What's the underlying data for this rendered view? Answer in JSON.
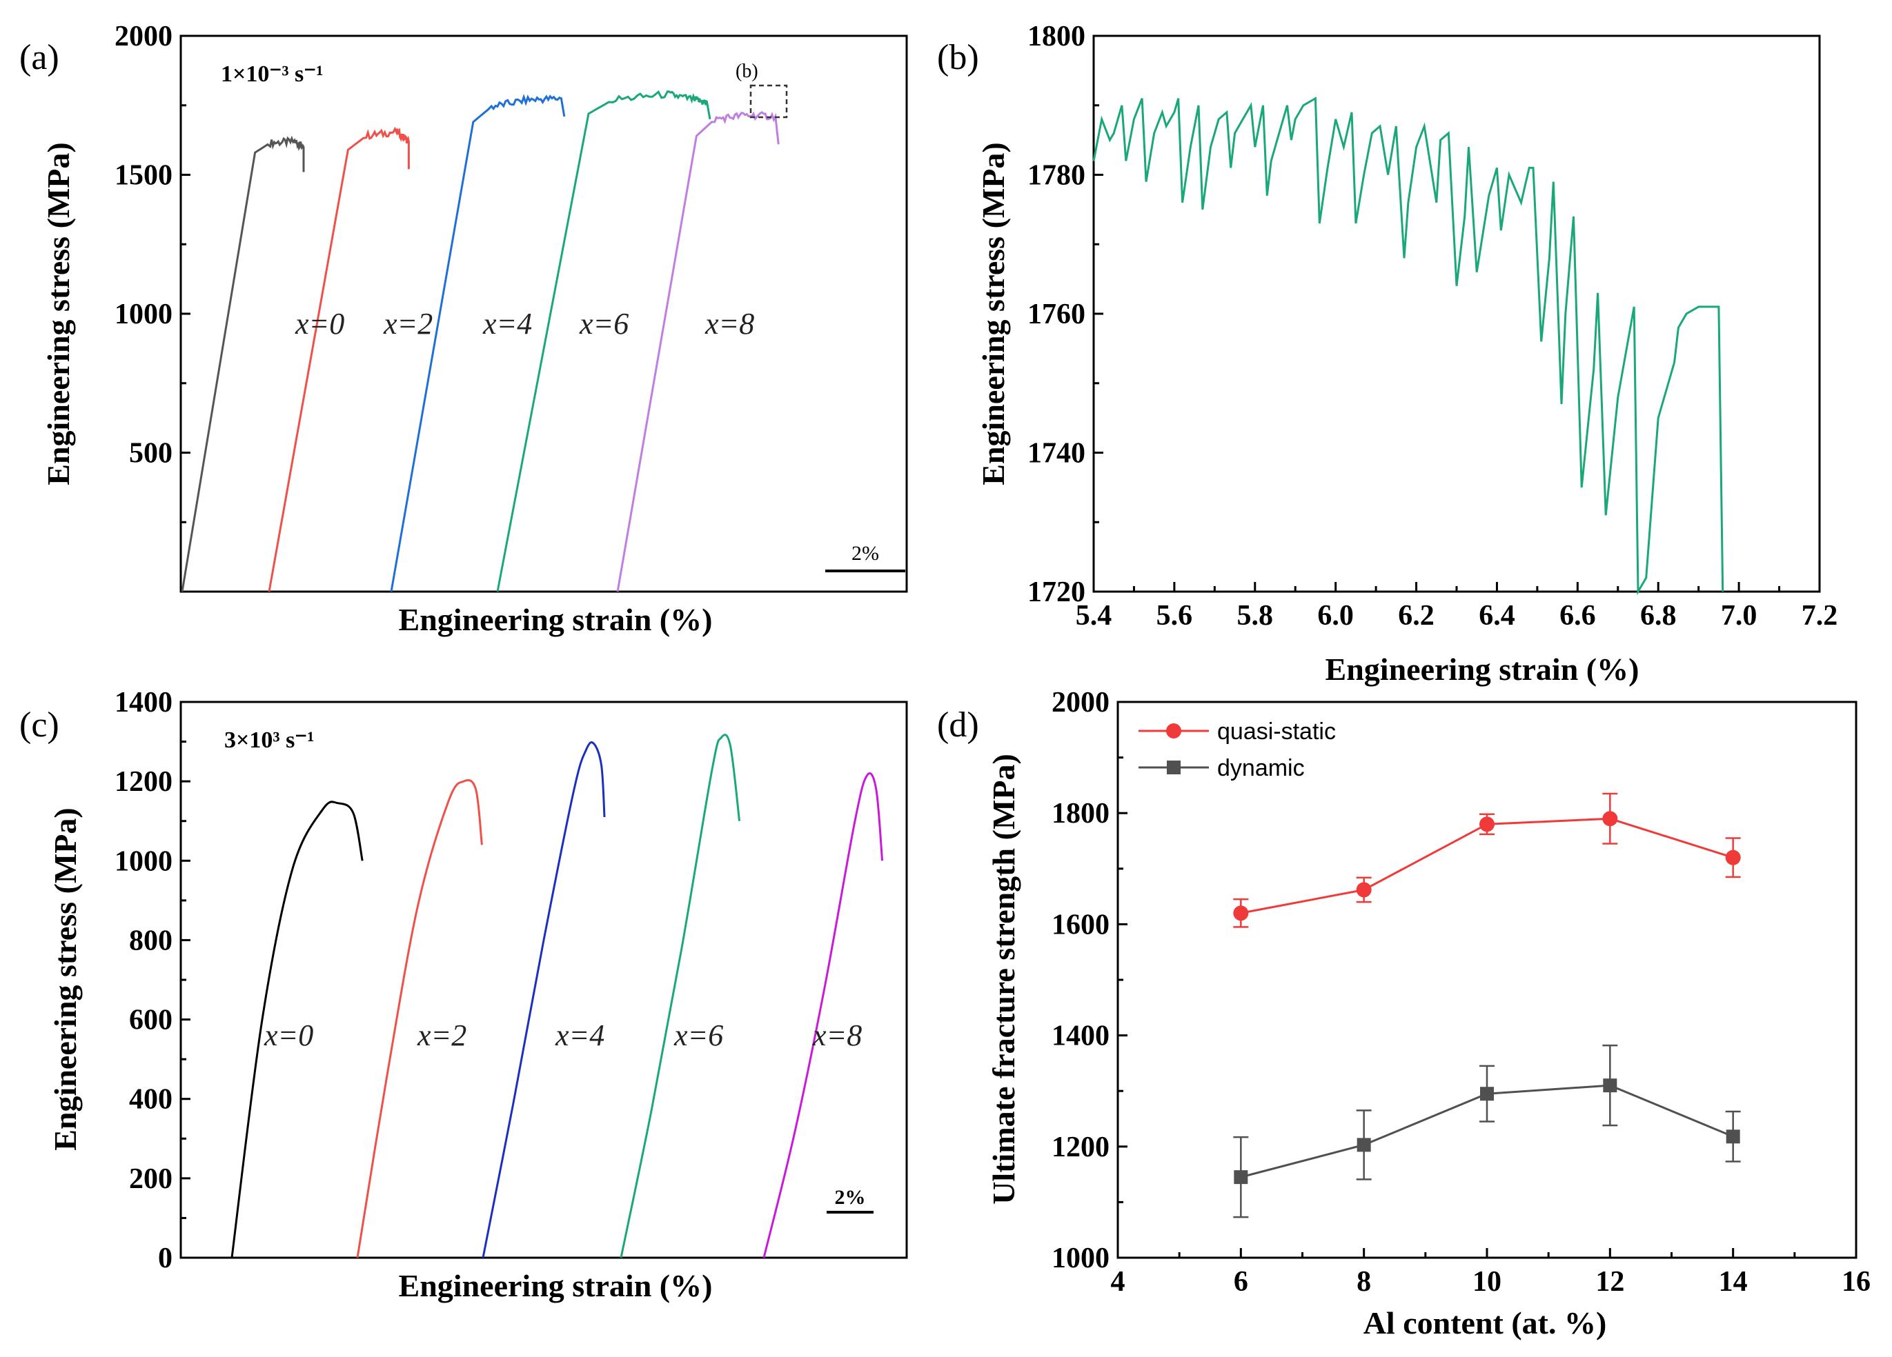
{
  "figure": {
    "panels": {
      "a": {
        "label": "(a)",
        "rate": "1×10⁻³ s⁻¹",
        "xlabel": "Engineering strain (%)",
        "ylabel": "Engineering stress (MPa)",
        "yticks": [
          "2000",
          "1500",
          "1000",
          "500"
        ],
        "scale_bar": "2%",
        "inset_marker": "(b)"
      },
      "b": {
        "label": "(b)",
        "xlabel": "Engineering strain (%)",
        "ylabel": "Engineering stress (MPa)",
        "xticks": [
          "5.4",
          "5.6",
          "5.8",
          "6.0",
          "6.2",
          "6.4",
          "6.6",
          "6.8",
          "7.0",
          "7.2"
        ],
        "yticks": [
          "1800",
          "1780",
          "1760",
          "1740",
          "1720"
        ]
      },
      "c": {
        "label": "(c)",
        "rate": "3×10³ s⁻¹",
        "xlabel": "Engineering strain (%)",
        "ylabel": "Engineering stress (MPa)",
        "yticks": [
          "1400",
          "1200",
          "1000",
          "800",
          "600",
          "400",
          "200",
          "0"
        ],
        "scale_bar": "2%"
      },
      "d": {
        "label": "(d)",
        "xlabel": "Al content (at. %)",
        "ylabel": "Ultimate fracture strength (MPa)",
        "xticks": [
          "4",
          "6",
          "8",
          "10",
          "12",
          "14",
          "16"
        ],
        "yticks": [
          "2000",
          "1800",
          "1600",
          "1400",
          "1200",
          "1000"
        ]
      }
    }
  },
  "chart_data": [
    {
      "panel": "a",
      "type": "line",
      "title": "1×10⁻³ s⁻¹",
      "xlabel": "Engineering strain (%)",
      "ylabel": "Engineering stress (MPa)",
      "ylim": [
        0,
        2000
      ],
      "series": [
        {
          "name": "x=0",
          "label": "x=0",
          "color": "#555555",
          "curve": [
            [
              0,
              0
            ],
            [
              2.4,
              1580
            ],
            [
              2.9,
              1615
            ],
            [
              3.7,
              1620
            ],
            [
              4.0,
              1600
            ],
            [
              4.0,
              1510
            ]
          ]
        },
        {
          "name": "x=2",
          "label": "x=2",
          "color": "#f0504a",
          "curve": [
            [
              0,
              0
            ],
            [
              2.6,
              1590
            ],
            [
              3.2,
              1640
            ],
            [
              4.2,
              1655
            ],
            [
              4.6,
              1620
            ],
            [
              4.6,
              1520
            ]
          ]
        },
        {
          "name": "x=4",
          "label": "x=4",
          "color": "#1f6fd8",
          "curve": [
            [
              0,
              0
            ],
            [
              2.7,
              1690
            ],
            [
              3.3,
              1745
            ],
            [
              4.5,
              1770
            ],
            [
              5.6,
              1775
            ],
            [
              5.7,
              1710
            ]
          ]
        },
        {
          "name": "x=6",
          "label": "x=6",
          "color": "#1aa878",
          "curve": [
            [
              0,
              0
            ],
            [
              3.0,
              1720
            ],
            [
              3.8,
              1770
            ],
            [
              5.6,
              1790
            ],
            [
              6.5,
              1770
            ],
            [
              6.9,
              1760
            ],
            [
              7.0,
              1700
            ]
          ]
        },
        {
          "name": "x=8",
          "label": "x=8",
          "color": "#c07ee0",
          "curve": [
            [
              0,
              0
            ],
            [
              2.6,
              1640
            ],
            [
              3.2,
              1700
            ],
            [
              4.2,
              1715
            ],
            [
              5.2,
              1710
            ],
            [
              5.3,
              1610
            ]
          ]
        }
      ],
      "scale_bar": "2%"
    },
    {
      "panel": "b",
      "type": "line",
      "xlabel": "Engineering strain (%)",
      "ylabel": "Engineering stress (MPa)",
      "xlim": [
        5.4,
        7.2
      ],
      "ylim": [
        1720,
        1800
      ],
      "series": [
        {
          "name": "x=6",
          "color": "#1aa878",
          "x": [
            5.4,
            5.42,
            5.44,
            5.45,
            5.47,
            5.48,
            5.5,
            5.52,
            5.53,
            5.55,
            5.57,
            5.58,
            5.6,
            5.61,
            5.62,
            5.64,
            5.66,
            5.67,
            5.69,
            5.71,
            5.73,
            5.74,
            5.75,
            5.77,
            5.79,
            5.8,
            5.82,
            5.83,
            5.84,
            5.86,
            5.88,
            5.89,
            5.9,
            5.92,
            5.95,
            5.96,
            5.98,
            6.0,
            6.02,
            6.04,
            6.05,
            6.07,
            6.09,
            6.11,
            6.13,
            6.15,
            6.17,
            6.18,
            6.2,
            6.22,
            6.25,
            6.26,
            6.28,
            6.3,
            6.32,
            6.33,
            6.35,
            6.38,
            6.4,
            6.41,
            6.43,
            6.46,
            6.48,
            6.49,
            6.51,
            6.53,
            6.54,
            6.56,
            6.57,
            6.59,
            6.61,
            6.64,
            6.65,
            6.67,
            6.7,
            6.74,
            6.75,
            6.77,
            6.8,
            6.84,
            6.85,
            6.87,
            6.9,
            6.95,
            6.96,
            6.96
          ],
          "y": [
            1782,
            1788,
            1785,
            1786,
            1790,
            1782,
            1788,
            1791,
            1779,
            1786,
            1789,
            1787,
            1789,
            1791,
            1776,
            1784,
            1790,
            1775,
            1784,
            1788,
            1789,
            1781,
            1786,
            1788,
            1790,
            1784,
            1790,
            1777,
            1782,
            1786,
            1790,
            1785,
            1788,
            1790,
            1791,
            1773,
            1781,
            1788,
            1784,
            1789,
            1773,
            1780,
            1786,
            1787,
            1780,
            1787,
            1768,
            1776,
            1784,
            1787,
            1776,
            1785,
            1786,
            1764,
            1774,
            1784,
            1766,
            1777,
            1781,
            1772,
            1780,
            1776,
            1781,
            1781,
            1756,
            1768,
            1779,
            1747,
            1760,
            1774,
            1735,
            1752,
            1763,
            1731,
            1748,
            1761,
            1720,
            1722,
            1745,
            1753,
            1758,
            1760,
            1761,
            1761,
            1720,
            1720
          ]
        }
      ]
    },
    {
      "panel": "c",
      "type": "line",
      "title": "3×10³ s⁻¹",
      "xlabel": "Engineering strain (%)",
      "ylabel": "Engineering stress (MPa)",
      "ylim": [
        0,
        1400
      ],
      "series": [
        {
          "name": "x=0",
          "label": "x=0",
          "color": "#000000",
          "curve": [
            [
              0,
              0
            ],
            [
              1.0,
              600
            ],
            [
              2.0,
              980
            ],
            [
              3.0,
              1130
            ],
            [
              3.5,
              1145
            ],
            [
              4.0,
              1120
            ],
            [
              4.3,
              1000
            ]
          ]
        },
        {
          "name": "x=2",
          "label": "x=2",
          "color": "#f0504a",
          "curve": [
            [
              0,
              0
            ],
            [
              1.0,
              470
            ],
            [
              2.0,
              890
            ],
            [
              3.0,
              1150
            ],
            [
              3.5,
              1200
            ],
            [
              3.9,
              1180
            ],
            [
              4.1,
              1040
            ]
          ]
        },
        {
          "name": "x=4",
          "label": "x=4",
          "color": "#1b2fc0",
          "curve": [
            [
              0,
              0
            ],
            [
              1.0,
              390
            ],
            [
              2.0,
              800
            ],
            [
              3.0,
              1180
            ],
            [
              3.4,
              1280
            ],
            [
              3.65,
              1295
            ],
            [
              3.9,
              1240
            ],
            [
              4.0,
              1110
            ]
          ]
        },
        {
          "name": "x=6",
          "label": "x=6",
          "color": "#1aa878",
          "curve": [
            [
              0,
              0
            ],
            [
              1.0,
              370
            ],
            [
              2.0,
              780
            ],
            [
              3.0,
              1230
            ],
            [
              3.3,
              1310
            ],
            [
              3.6,
              1290
            ],
            [
              3.9,
              1100
            ]
          ]
        },
        {
          "name": "x=8",
          "label": "x=8",
          "color": "#c81ad8",
          "curve": [
            [
              0,
              0
            ],
            [
              1.0,
              310
            ],
            [
              2.0,
              680
            ],
            [
              3.0,
              1100
            ],
            [
              3.4,
              1215
            ],
            [
              3.7,
              1180
            ],
            [
              3.9,
              1000
            ]
          ]
        }
      ],
      "scale_bar": "2%"
    },
    {
      "panel": "d",
      "type": "line",
      "xlabel": "Al content (at. %)",
      "ylabel": "Ultimate fracture strength (MPa)",
      "xlim": [
        4,
        16
      ],
      "ylim": [
        1000,
        2000
      ],
      "legend_position": "top-left",
      "x": [
        6,
        8,
        10,
        12,
        14
      ],
      "series": [
        {
          "name": "quasi-static",
          "color": "#f03a3a",
          "marker": "circle",
          "values": [
            1620,
            1662,
            1780,
            1790,
            1720
          ],
          "err": [
            25,
            22,
            18,
            45,
            35
          ]
        },
        {
          "name": "dynamic",
          "color": "#505050",
          "marker": "square",
          "values": [
            1145,
            1203,
            1295,
            1310,
            1218
          ],
          "err": [
            72,
            62,
            50,
            72,
            45
          ]
        }
      ]
    }
  ]
}
